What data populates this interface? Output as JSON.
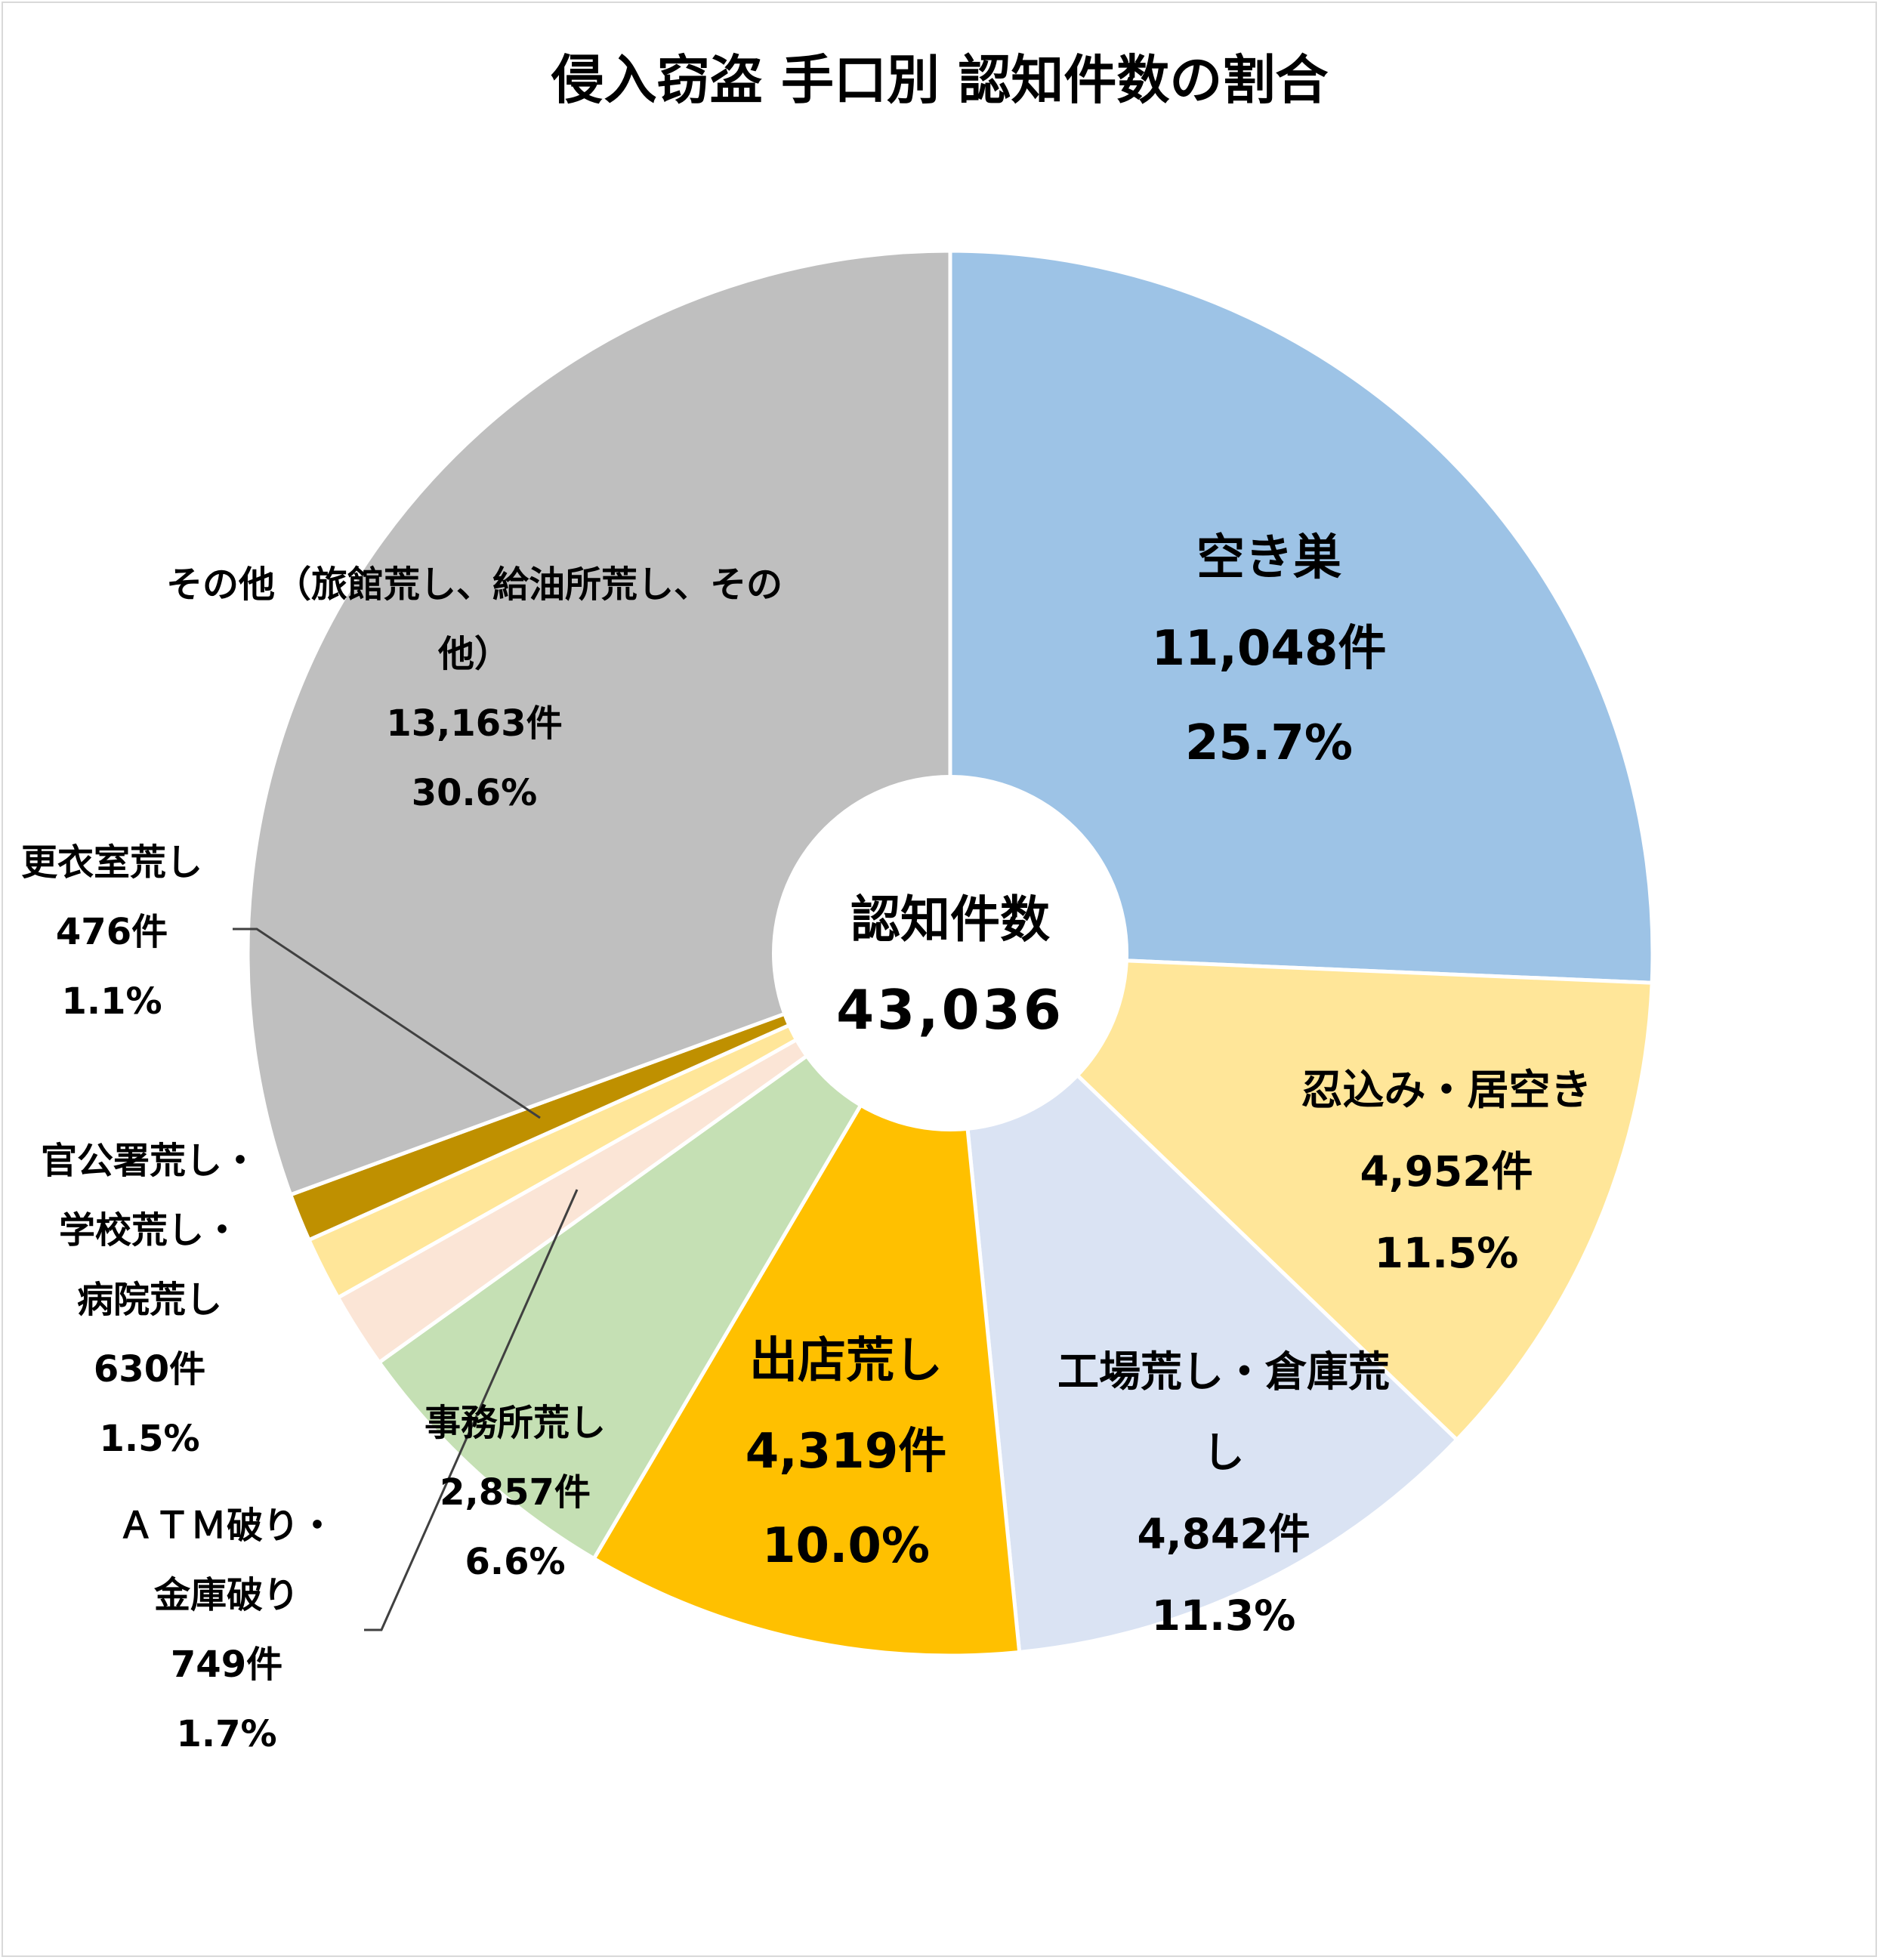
{
  "chart_data": {
    "type": "pie",
    "title": "侵入窃盗 手口別 認知件数の割合",
    "center_label": "認知件数",
    "center_value": "43,036",
    "slices": [
      {
        "name": "空き巣",
        "count": 11048,
        "count_label": "11,048件",
        "percent_label": "25.7%",
        "color": "#9DC3E6"
      },
      {
        "name": "忍込み・居空き",
        "count": 4952,
        "count_label": "4,952件",
        "percent_label": "11.5%",
        "color": "#FFE699"
      },
      {
        "name": "工場荒し・倉庫荒し",
        "count": 4842,
        "count_label": "4,842件",
        "percent_label": "11.3%",
        "color": "#DAE3F3"
      },
      {
        "name": "出店荒し",
        "count": 4319,
        "count_label": "4,319件",
        "percent_label": "10.0%",
        "color": "#FFC000"
      },
      {
        "name": "事務所荒し",
        "count": 2857,
        "count_label": "2,857件",
        "percent_label": "6.6%",
        "color": "#C5E0B4"
      },
      {
        "name": "ＡＴＭ破り・金庫破り",
        "count": 749,
        "count_label": "749件",
        "percent_label": "1.7%",
        "color": "#FBE5D6"
      },
      {
        "name": "官公署荒し・学校荒し・病院荒し",
        "count": 630,
        "count_label": "630件",
        "percent_label": "1.5%",
        "color": "#FFE699"
      },
      {
        "name": "更衣室荒し",
        "count": 476,
        "count_label": "476件",
        "percent_label": "1.1%",
        "color": "#BF9000"
      },
      {
        "name": "その他（旅館荒し、給油所荒し、その他）",
        "count": 13163,
        "count_label": "13,163件",
        "percent_label": "30.6%",
        "color": "#BFBFBF"
      }
    ]
  }
}
